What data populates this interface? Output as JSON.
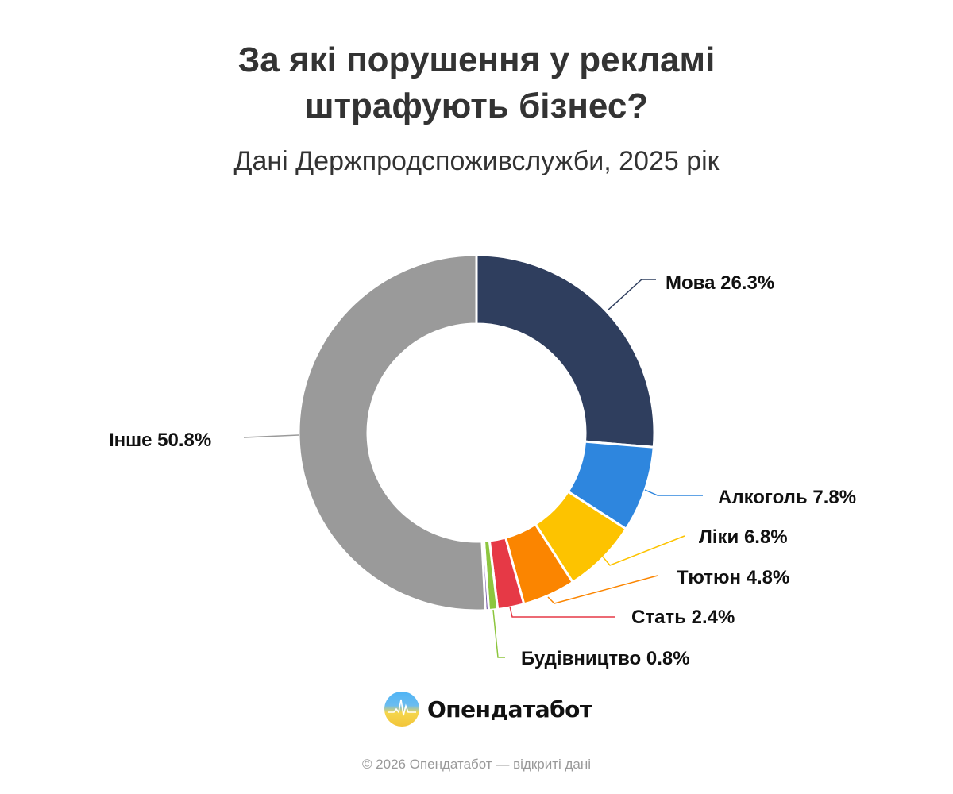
{
  "header": {
    "title_line1": "За які порушення у рекламі",
    "title_line2": "штрафують бізнес?",
    "subtitle": "Дані Держпродспоживслужби, 2025 рік"
  },
  "chart_data": {
    "type": "pie",
    "variant": "donut",
    "title": "За які порушення у рекламі штрафують бізнес?",
    "subtitle": "Дані Держпродспоживслужби, 2025 рік",
    "slices": [
      {
        "label": "Мова",
        "value": 26.3,
        "display": "Мова 26.3%",
        "color": "#2f3e5e"
      },
      {
        "label": "Алкоголь",
        "value": 7.8,
        "display": "Алкоголь 7.8%",
        "color": "#2e86de"
      },
      {
        "label": "Ліки",
        "value": 6.8,
        "display": "Ліки 6.8%",
        "color": "#fdc300"
      },
      {
        "label": "Тютюн",
        "value": 4.8,
        "display": "Тютюн 4.8%",
        "color": "#fb8500"
      },
      {
        "label": "Стать",
        "value": 2.4,
        "display": "Стать 2.4%",
        "color": "#e63946"
      },
      {
        "label": "Будівництво",
        "value": 0.8,
        "display": "Будівництво 0.8%",
        "color": "#8dc63f"
      },
      {
        "label": "",
        "value": 0.3,
        "display": "",
        "color": "#6a4ca0"
      },
      {
        "label": "Інше",
        "value": 50.8,
        "display": "Інше 50.8%",
        "color": "#9a9a9a"
      }
    ]
  },
  "brand": {
    "name": "Опендатабот",
    "logo_icon": "opendatabot-logo-icon"
  },
  "footer": {
    "text": "© 2026 Опендатабот — відкриті дані"
  }
}
